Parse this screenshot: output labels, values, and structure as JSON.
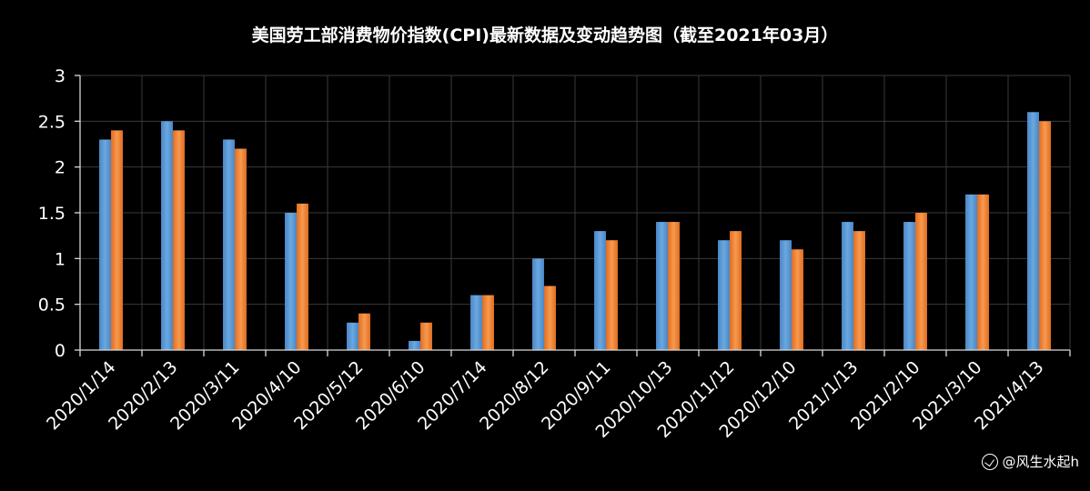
{
  "chart_data": {
    "type": "bar",
    "title": "美国劳工部消费物价指数(CPI)最新数据及变动趋势图（截至2021年03月）",
    "categories": [
      "2020/1/14",
      "2020/2/13",
      "2020/3/11",
      "2020/4/10",
      "2020/5/12",
      "2020/6/10",
      "2020/7/14",
      "2020/8/12",
      "2020/9/11",
      "2020/10/13",
      "2020/11/12",
      "2020/12/10",
      "2021/1/13",
      "2021/2/10",
      "2021/3/10",
      "2021/4/13"
    ],
    "series": [
      {
        "values": [
          2.3,
          2.5,
          2.3,
          1.5,
          0.3,
          0.1,
          0.6,
          1.0,
          1.3,
          1.4,
          1.2,
          1.2,
          1.4,
          1.4,
          1.7,
          2.6
        ],
        "color": "#5b9bd5"
      },
      {
        "values": [
          2.4,
          2.4,
          2.2,
          1.6,
          0.4,
          0.3,
          0.6,
          0.7,
          1.2,
          1.4,
          1.3,
          1.1,
          1.3,
          1.5,
          1.7,
          2.5
        ],
        "color": "#ed7d31"
      }
    ],
    "ylim": [
      0,
      3
    ],
    "yticks": [
      "0",
      "0.5",
      "1",
      "1.5",
      "2",
      "2.5",
      "3"
    ],
    "grid": true,
    "legend": "none"
  },
  "watermark": "@风生水起h"
}
